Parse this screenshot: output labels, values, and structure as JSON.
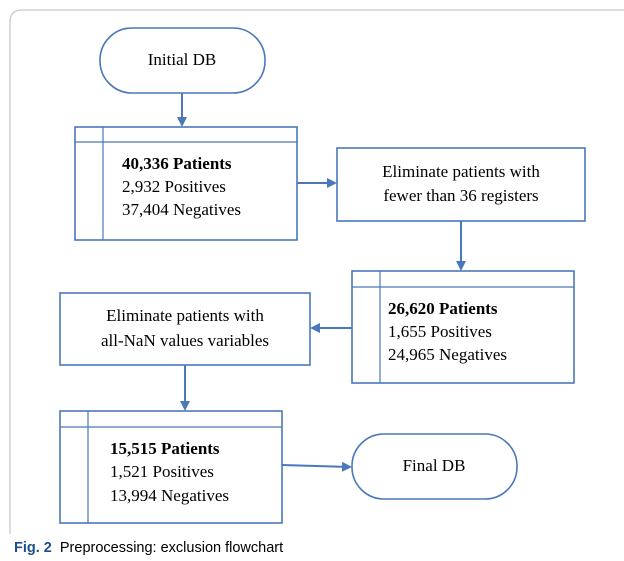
{
  "nodes": [
    {
      "label": "Initial DB"
    },
    {
      "title": "40,336 Patients",
      "lines": [
        "2,932 Positives",
        "37,404 Negatives"
      ]
    },
    {
      "lines": [
        "Eliminate patients with",
        "fewer than 36 registers"
      ]
    },
    {
      "title": "26,620 Patients",
      "lines": [
        "1,655 Positives",
        "24,965 Negatives"
      ]
    },
    {
      "lines": [
        "Eliminate patients with",
        "all-NaN values variables"
      ]
    },
    {
      "title": "15,515 Patients",
      "lines": [
        "1,521 Positives",
        "13,994 Negatives"
      ]
    },
    {
      "label": "Final DB"
    }
  ],
  "caption": {
    "label": "Fig. 2",
    "text": "Preprocessing: exclusion flowchart"
  }
}
